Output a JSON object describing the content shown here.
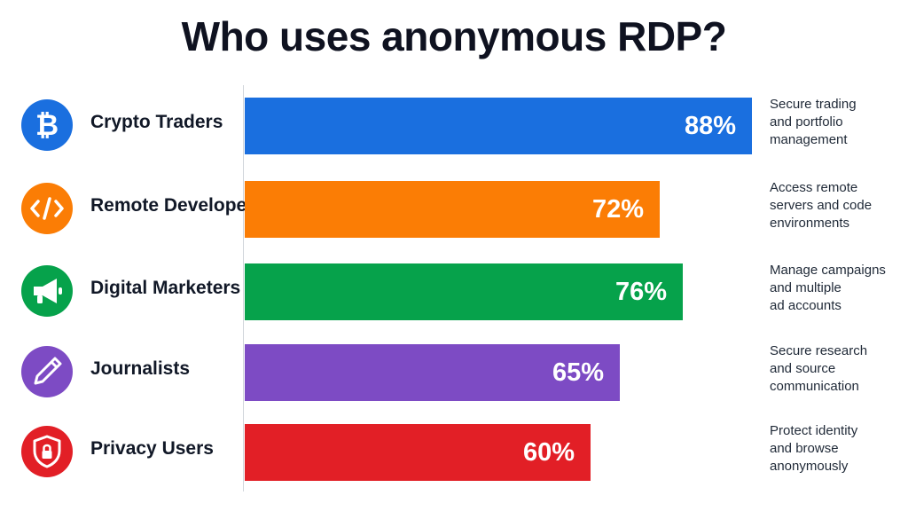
{
  "chart_data": {
    "type": "bar",
    "orientation": "horizontal",
    "title": "Who uses anonymous RDP?",
    "xlim": [
      0,
      100
    ],
    "grid": false,
    "categories": [
      "Crypto Traders",
      "Remote Developers",
      "Digital Marketers",
      "Journalists",
      "Privacy Users"
    ],
    "values": [
      88,
      72,
      76,
      65,
      60
    ],
    "value_labels": [
      "88%",
      "72%",
      "76%",
      "65%",
      "60%"
    ],
    "colors": [
      "#1a6fdf",
      "#fb7d05",
      "#06a24b",
      "#7d4bc4",
      "#e21f26"
    ],
    "icons": [
      "bitcoin-icon",
      "code-icon",
      "megaphone-icon",
      "pen-icon",
      "shield-lock-icon"
    ],
    "descriptions": [
      [
        "Secure trading",
        "and portfolio",
        "management"
      ],
      [
        "Access remote",
        "servers and code",
        "environments"
      ],
      [
        "Manage campaigns",
        "and multiple",
        "ad accounts"
      ],
      [
        "Secure research",
        "and source",
        "communication"
      ],
      [
        "Protect identity",
        "and browse",
        "anonymously"
      ]
    ]
  }
}
